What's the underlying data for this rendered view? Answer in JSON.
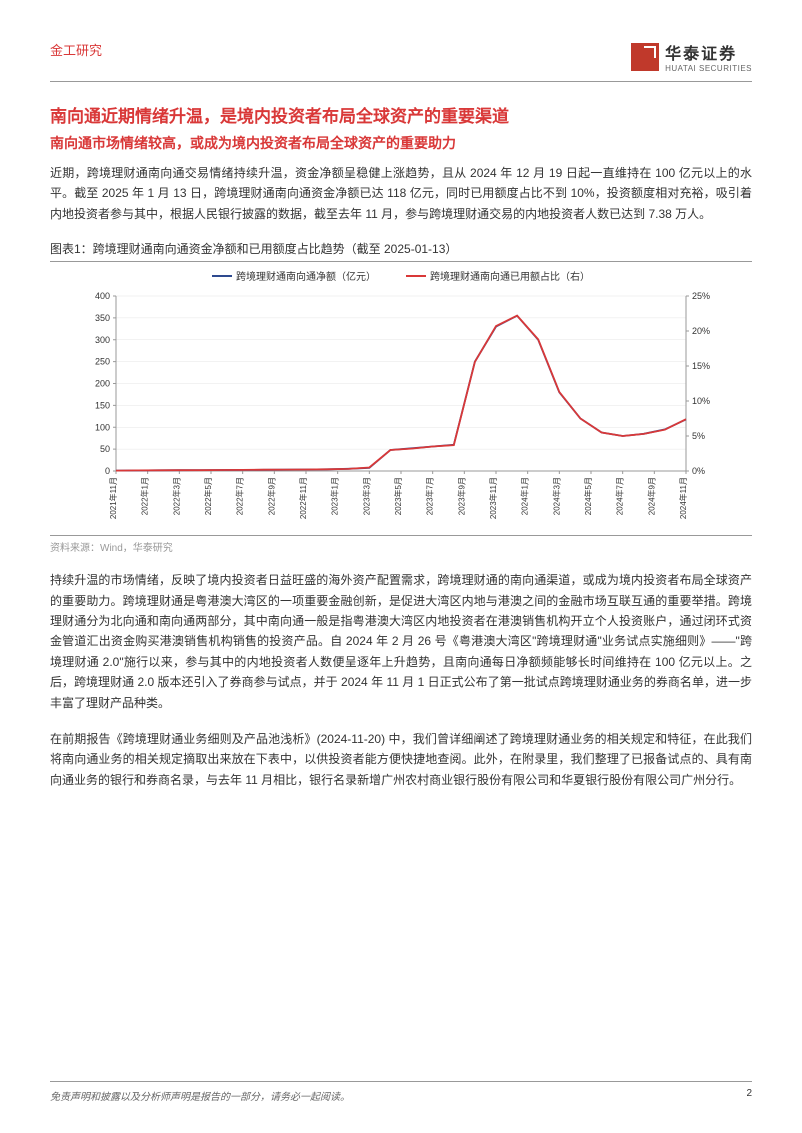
{
  "header": {
    "category": "金工研究",
    "logo_cn": "华泰证券",
    "logo_en": "HUATAI SECURITIES"
  },
  "heading": {
    "main": "南向通近期情绪升温，是境内投资者布局全球资产的重要渠道",
    "sub": "南向通市场情绪较高，或成为境内投资者布局全球资产的重要助力"
  },
  "paragraphs": {
    "p1": "近期，跨境理财通南向通交易情绪持续升温，资金净额呈稳健上涨趋势，且从 2024 年 12 月 19 日起一直维持在 100 亿元以上的水平。截至 2025 年 1 月 13 日，跨境理财通南向通资金净额已达 118 亿元，同时已用额度占比不到 10%，投资额度相对充裕，吸引着内地投资者参与其中，根据人民银行披露的数据，截至去年 11 月，参与跨境理财通交易的内地投资者人数已达到 7.38 万人。",
    "p2": "持续升温的市场情绪，反映了境内投资者日益旺盛的海外资产配置需求，跨境理财通的南向通渠道，或成为境内投资者布局全球资产的重要助力。跨境理财通是粤港澳大湾区的一项重要金融创新，是促进大湾区内地与港澳之间的金融市场互联互通的重要举措。跨境理财通分为北向通和南向通两部分，其中南向通一般是指粤港澳大湾区内地投资者在港澳销售机构开立个人投资账户，通过闭环式资金管道汇出资金购买港澳销售机构销售的投资产品。自 2024 年 2 月 26 号《粤港澳大湾区\"跨境理财通\"业务试点实施细则》——\"跨境理财通 2.0\"施行以来，参与其中的内地投资者人数便呈逐年上升趋势，且南向通每日净额频能够长时间维持在 100 亿元以上。之后，跨境理财通 2.0 版本还引入了券商参与试点，并于 2024 年 11 月 1 日正式公布了第一批试点跨境理财通业务的券商名单，进一步丰富了理财产品种类。",
    "p3": "在前期报告《跨境理财通业务细则及产品池浅析》(2024-11-20) 中，我们曾详细阐述了跨境理财通业务的相关规定和特征，在此我们将南向通业务的相关规定摘取出来放在下表中，以供投资者能方便快捷地查阅。此外，在附录里，我们整理了已报备试点的、具有南向通业务的银行和券商名录，与去年 11 月相比，银行名录新增广州农村商业银行股份有限公司和华夏银行股份有限公司广州分行。"
  },
  "chart": {
    "caption": "图表1：跨境理财通南向通资金净额和已用额度占比趋势（截至 2025-01-13）",
    "source": "资料来源：Wind，华泰研究",
    "legend": {
      "series1": "跨境理财通南向通净额（亿元）",
      "series2": "跨境理财通南向通已用额占比（右）"
    },
    "styling": {
      "series1_color": "#2e4a8f",
      "series2_color": "#d93838",
      "grid_color": "#e5e5e5",
      "axis_color": "#999999",
      "background_color": "#ffffff"
    },
    "y_left": {
      "min": 0,
      "max": 400,
      "step": 50,
      "ticks": [
        0,
        50,
        100,
        150,
        200,
        250,
        300,
        350,
        400
      ]
    },
    "y_right": {
      "min": 0,
      "max": 0.25,
      "step": 0.05,
      "ticks": [
        "0%",
        "5%",
        "10%",
        "15%",
        "20%",
        "25%"
      ]
    },
    "x_labels": [
      "2021年11月",
      "2022年1月",
      "2022年3月",
      "2022年5月",
      "2022年7月",
      "2022年9月",
      "2022年11月",
      "2023年1月",
      "2023年3月",
      "2023年5月",
      "2023年7月",
      "2023年9月",
      "2023年11月",
      "2024年1月",
      "2024年3月",
      "2024年5月",
      "2024年7月",
      "2024年9月",
      "2024年11月"
    ],
    "series1_values": [
      1,
      1.2,
      1.5,
      1.8,
      2,
      2.2,
      2.5,
      2.8,
      3,
      3.5,
      4,
      5,
      7,
      48,
      52,
      56,
      60,
      250,
      330,
      355,
      300,
      180,
      120,
      88,
      80,
      85,
      95,
      118
    ],
    "series2_values": [
      0.0006,
      0.0008,
      0.001,
      0.0011,
      0.0012,
      0.0014,
      0.0016,
      0.0018,
      0.002,
      0.0022,
      0.0025,
      0.003,
      0.005,
      0.03,
      0.032,
      0.035,
      0.037,
      0.156,
      0.207,
      0.222,
      0.188,
      0.113,
      0.075,
      0.055,
      0.05,
      0.053,
      0.059,
      0.074
    ]
  },
  "footer": {
    "disclaimer": "免责声明和披露以及分析师声明是报告的一部分，请务必一起阅读。",
    "page_number": "2"
  }
}
